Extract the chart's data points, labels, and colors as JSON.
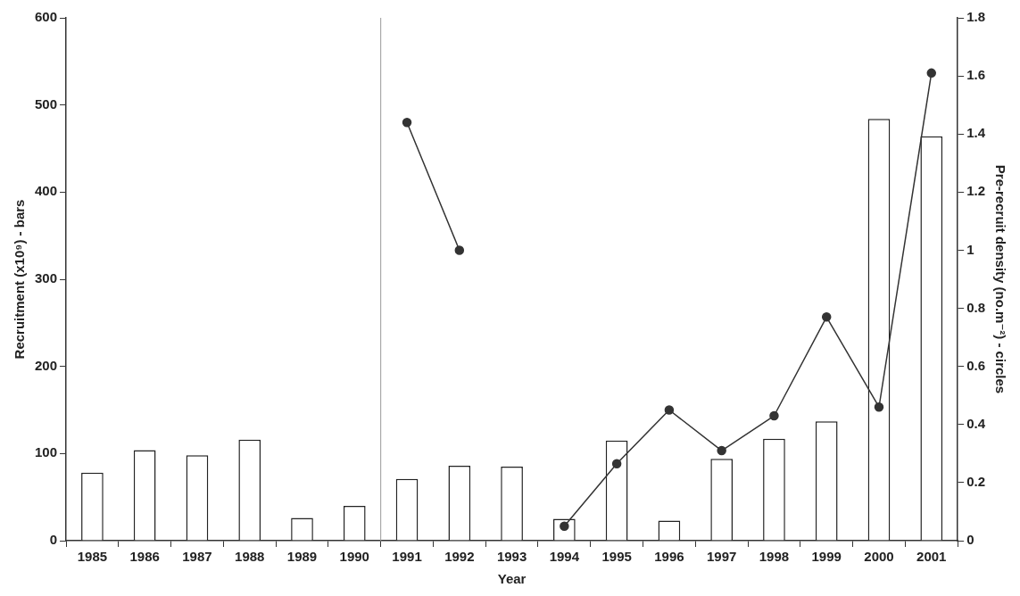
{
  "chart_data": {
    "type": "bar",
    "xlabel": "Year",
    "ylabel": "Recruitment (x10⁹) - bars",
    "y2label": "Pre-recruit density (no.m⁻²) - circles",
    "x": [
      1985,
      1986,
      1987,
      1988,
      1989,
      1990,
      1991,
      1992,
      1993,
      1994,
      1995,
      1996,
      1997,
      1998,
      1999,
      2000,
      2001
    ],
    "xlim": [
      1984.5,
      2001.5
    ],
    "xticks": [
      1985,
      1986,
      1987,
      1988,
      1989,
      1990,
      1991,
      1992,
      1993,
      1994,
      1995,
      1996,
      1997,
      1998,
      1999,
      2000,
      2001
    ],
    "ylim": [
      0,
      600
    ],
    "yticks": [
      0,
      100,
      200,
      300,
      400,
      500,
      600
    ],
    "y2lim": [
      0,
      1.8
    ],
    "y2ticks": [
      0,
      0.2,
      0.4,
      0.6,
      0.8,
      1,
      1.2,
      1.4,
      1.6,
      1.8
    ],
    "series": [
      {
        "color": "#ffffff",
        "values": [
          78,
          104,
          98,
          116,
          26,
          40,
          71,
          86,
          85,
          25,
          115,
          23,
          94,
          117,
          137,
          484,
          464
        ]
      },
      {
        "type": "line",
        "axis": "y2",
        "color": "#333333",
        "marker": "circle",
        "line_style": "solid",
        "values": [
          null,
          null,
          null,
          null,
          null,
          null,
          1.44,
          1.0,
          null,
          0.05,
          0.265,
          0.45,
          0.31,
          0.43,
          0.77,
          0.46,
          1.61
        ]
      }
    ],
    "ref_lines": [
      {
        "axis": "x",
        "value": 1990.5,
        "color": "#999999"
      }
    ],
    "grid": false,
    "legend": false
  }
}
